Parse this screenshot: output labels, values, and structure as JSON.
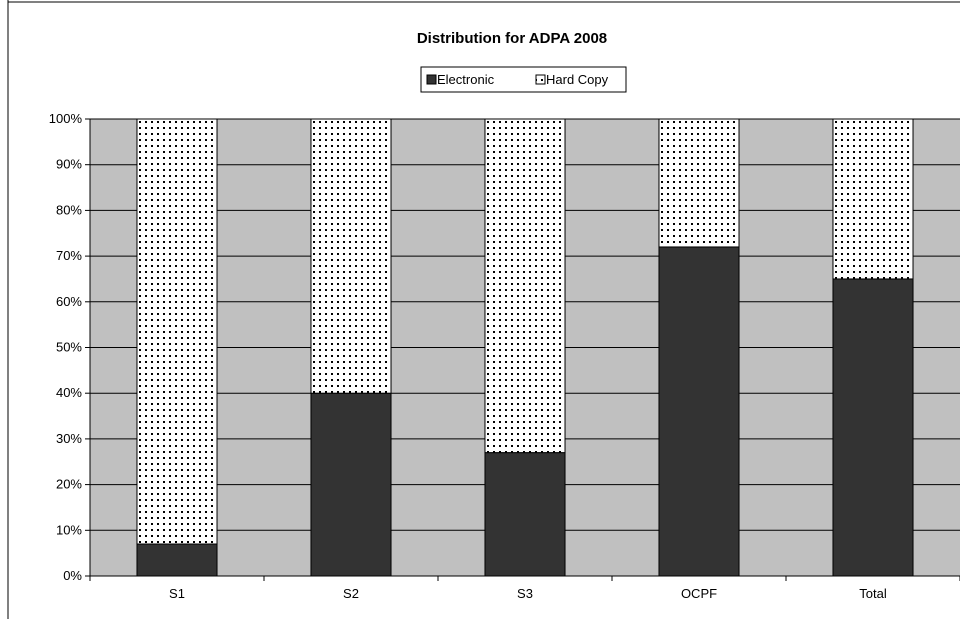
{
  "chart_data": {
    "type": "bar",
    "stacked": "percent",
    "title": "Distribution for ADPA 2008",
    "categories": [
      "S1",
      "S2",
      "S3",
      "OCPF",
      "Total"
    ],
    "series": [
      {
        "name": "Electronic",
        "values": [
          7,
          40,
          27,
          72,
          65
        ],
        "color": "#333333",
        "pattern": "solid"
      },
      {
        "name": "Hard Copy",
        "values": [
          93,
          60,
          73,
          28,
          35
        ],
        "color": "#ffffff",
        "pattern": "dotted"
      }
    ],
    "ylim": [
      0,
      100
    ],
    "yticks": [
      "0%",
      "10%",
      "20%",
      "30%",
      "40%",
      "50%",
      "60%",
      "70%",
      "80%",
      "90%",
      "100%"
    ],
    "xlabel": "",
    "ylabel": "",
    "grid": true,
    "plot_background": "#c0c0c0",
    "legend_position": "top-center"
  }
}
